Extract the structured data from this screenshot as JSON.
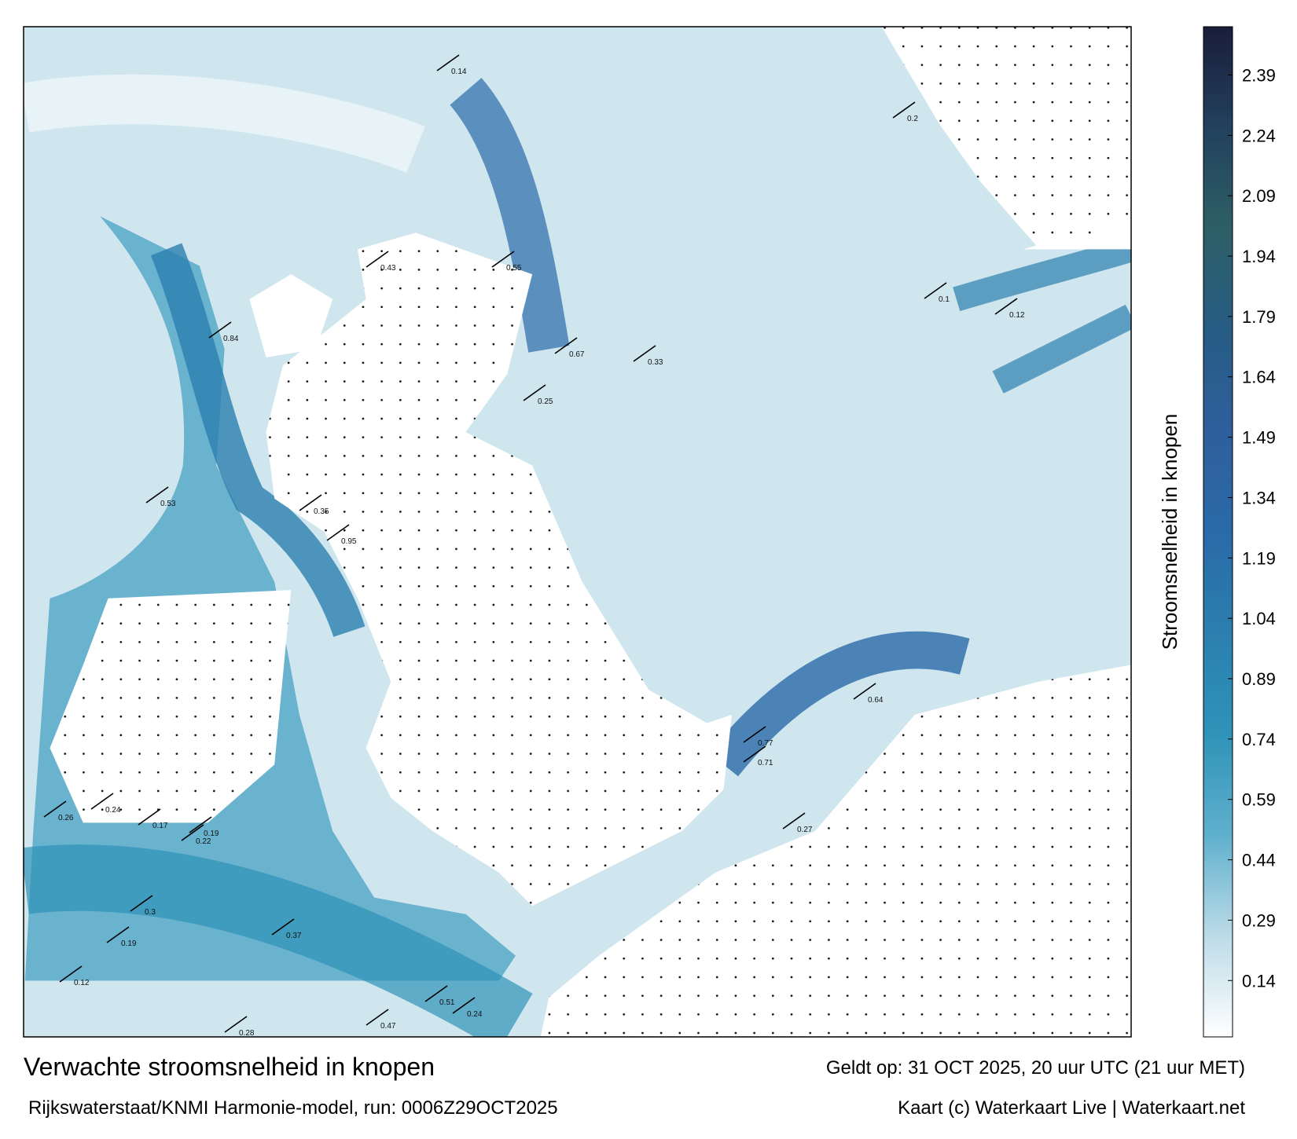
{
  "map": {
    "title": "Verwachte stroomsnelheid in knopen",
    "subtitle": "Rijkswaterstaat/KNMI Harmonie-model, run: 0006Z29OCT2025",
    "valid": "Geldt op: 31 OCT 2025, 20 uur UTC (21 uur MET)",
    "credit": "Kaart (c) Waterkaart Live | Waterkaart.net",
    "colorbar": {
      "label": "Stroomsnelheid in knopen",
      "clim": [
        0,
        2.51
      ],
      "ticks": [
        0.14,
        0.29,
        0.44,
        0.59,
        0.74,
        0.89,
        1.04,
        1.19,
        1.34,
        1.49,
        1.64,
        1.79,
        1.94,
        2.09,
        2.24,
        2.39
      ],
      "colors": [
        "#ffffff",
        "#bcdbe8",
        "#5fb0cd",
        "#2f93b8",
        "#2b7fae",
        "#2a6aa8",
        "#2f5f9c",
        "#275c84",
        "#2d5f66",
        "#22415d",
        "#1a1d3a"
      ]
    },
    "speeds": [
      "0.28",
      "0.19",
      "0.12",
      "0.14",
      "0.25",
      "0.67",
      "0.43",
      "0.55",
      "0.33",
      "0.27",
      "0.12",
      "0.1",
      "0.84",
      "0.95",
      "0.35",
      "0.24",
      "0.53",
      "0.71",
      "0.77",
      "0.64",
      "0.22",
      "0.17",
      "0.19",
      "0.26",
      "0.24",
      "0.3",
      "0.2",
      "0.47",
      "0.51",
      "0.37"
    ]
  }
}
